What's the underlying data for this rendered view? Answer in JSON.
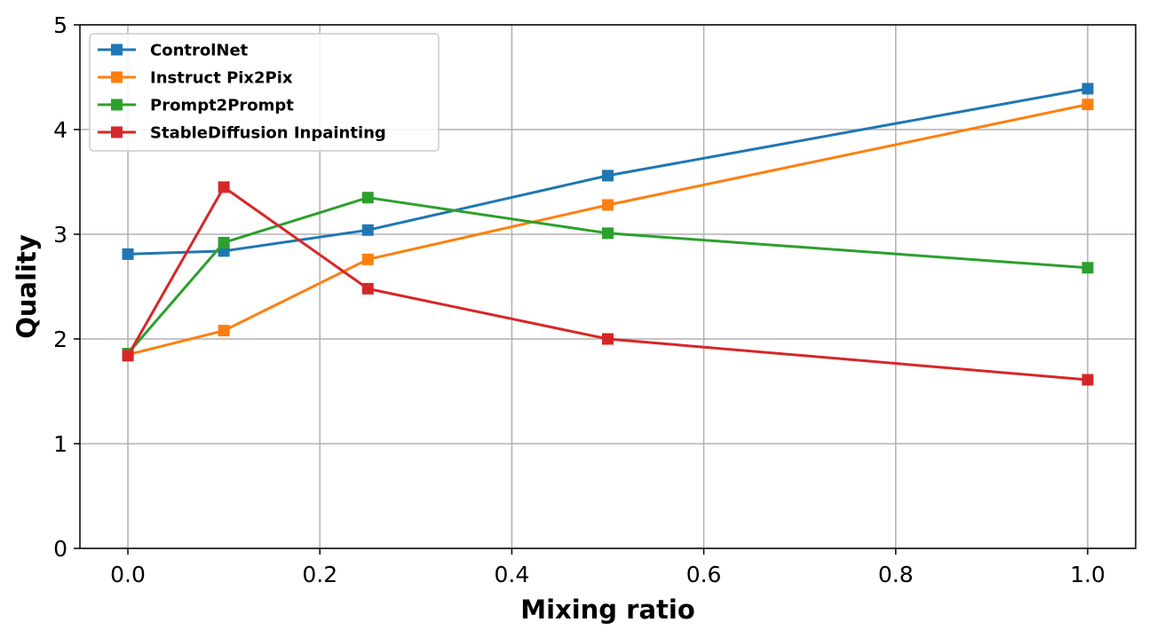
{
  "chart_data": {
    "type": "line",
    "title": "",
    "xlabel": "Mixing ratio",
    "ylabel": "Quality",
    "x": [
      0.0,
      0.1,
      0.25,
      0.5,
      1.0
    ],
    "xlim": [
      -0.05,
      1.05
    ],
    "ylim": [
      0,
      5
    ],
    "xticks": [
      0.0,
      0.2,
      0.4,
      0.6,
      0.8,
      1.0
    ],
    "xtick_labels": [
      "0.0",
      "0.2",
      "0.4",
      "0.6",
      "0.8",
      "1.0"
    ],
    "yticks": [
      0,
      1,
      2,
      3,
      4,
      5
    ],
    "ytick_labels": [
      "0",
      "1",
      "2",
      "3",
      "4",
      "5"
    ],
    "grid": true,
    "legend_position": "top-left",
    "series": [
      {
        "name": "ControlNet",
        "color": "#1f77b4",
        "marker": "square",
        "values": [
          2.81,
          2.84,
          3.04,
          3.56,
          4.39
        ]
      },
      {
        "name": "Instruct Pix2Pix",
        "color": "#ff7f0e",
        "marker": "square",
        "values": [
          1.85,
          2.08,
          2.76,
          3.28,
          4.24
        ]
      },
      {
        "name": "Prompt2Prompt",
        "color": "#2ca02c",
        "marker": "square",
        "values": [
          1.86,
          2.92,
          3.35,
          3.01,
          2.68
        ]
      },
      {
        "name": "StableDiffusion Inpainting",
        "color": "#d62728",
        "marker": "square",
        "values": [
          1.84,
          3.45,
          2.48,
          2.0,
          1.61
        ]
      }
    ]
  }
}
